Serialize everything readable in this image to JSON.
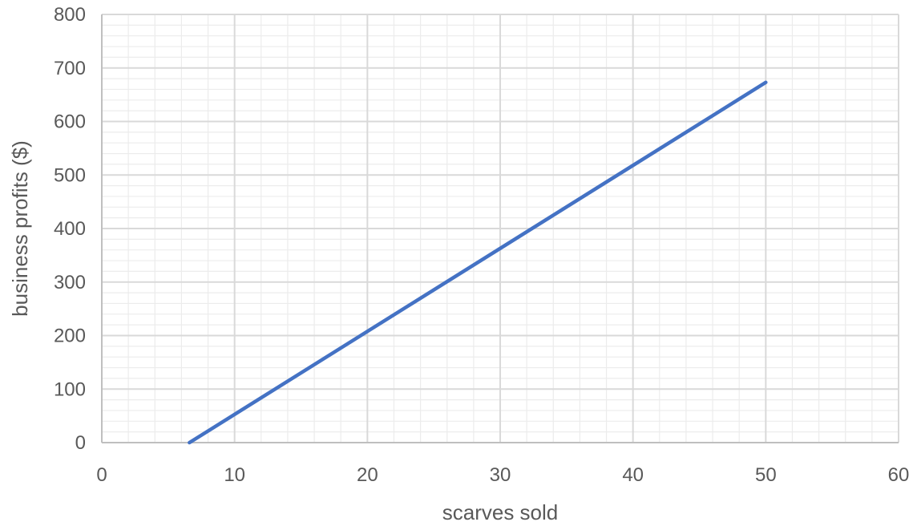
{
  "chart_data": {
    "type": "line",
    "title": "",
    "xlabel": "scarves sold",
    "ylabel": "business profits ($)",
    "xlim": [
      0,
      60
    ],
    "ylim": [
      0,
      800
    ],
    "x_ticks": [
      0,
      10,
      20,
      30,
      40,
      50,
      60
    ],
    "y_ticks": [
      0,
      100,
      200,
      300,
      400,
      500,
      600,
      700,
      800
    ],
    "x_tick_labels": [
      "0",
      "10",
      "20",
      "30",
      "40",
      "50",
      "60"
    ],
    "y_tick_labels": [
      "0",
      "100",
      "200",
      "300",
      "400",
      "500",
      "600",
      "700",
      "800"
    ],
    "grid": true,
    "minor_grid": true,
    "legend": "none",
    "colors": {
      "series": "#4472c4",
      "major_grid": "#d9d9d9",
      "minor_grid": "#ececec",
      "text": "#595959"
    },
    "series": [
      {
        "x": [
          6.6,
          50
        ],
        "y": [
          0,
          673
        ]
      }
    ]
  }
}
